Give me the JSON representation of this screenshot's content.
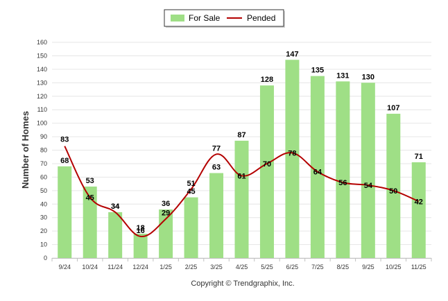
{
  "chart_data": {
    "type": "bar",
    "title": "",
    "xlabel": "",
    "ylabel": "Number of Homes",
    "ylim": [
      0,
      160
    ],
    "ytick_step": 10,
    "grid": true,
    "legend_position": "top-center",
    "categories": [
      "9/24",
      "10/24",
      "11/24",
      "12/24",
      "1/25",
      "2/25",
      "3/25",
      "4/25",
      "5/25",
      "6/25",
      "7/25",
      "8/25",
      "9/25",
      "10/25",
      "11/25"
    ],
    "series": [
      {
        "name": "For Sale",
        "type": "bar",
        "color": "#9fdf86",
        "values": [
          68,
          53,
          34,
          18,
          36,
          45,
          63,
          87,
          128,
          147,
          135,
          131,
          130,
          107,
          71
        ]
      },
      {
        "name": "Pended",
        "type": "line",
        "color": "#b40000",
        "values": [
          83,
          45,
          34,
          16,
          29,
          51,
          77,
          61,
          70,
          78,
          64,
          56,
          54,
          50,
          42
        ]
      }
    ],
    "footer": "Copyright © Trendgraphix, Inc."
  }
}
